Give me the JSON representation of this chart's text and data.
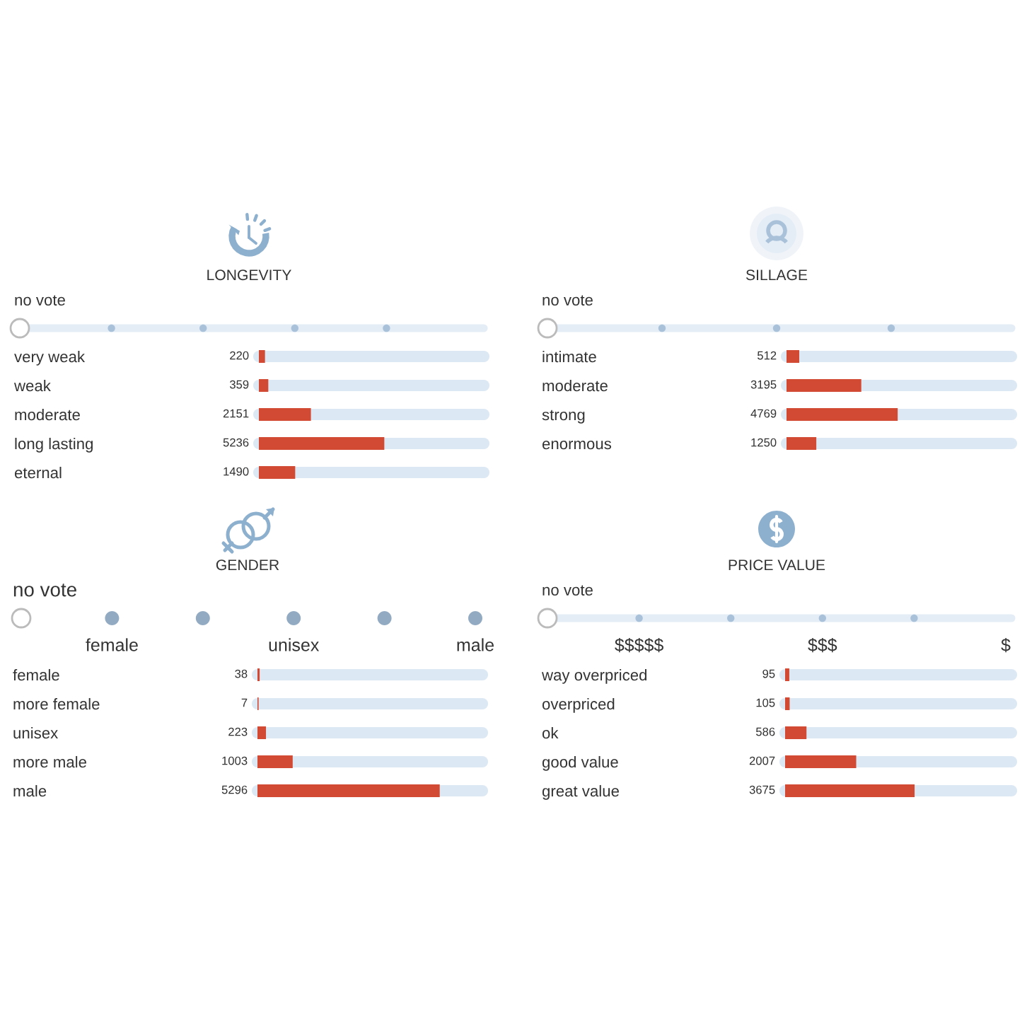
{
  "chart_data": [
    {
      "type": "bar",
      "orientation": "horizontal",
      "title": "LONGEVITY",
      "categories": [
        "very weak",
        "weak",
        "moderate",
        "long lasting",
        "eternal"
      ],
      "values": [
        220,
        359,
        2151,
        5236,
        1490
      ],
      "color": "#d24a33",
      "xlim": [
        0,
        9456
      ],
      "data_labels": true,
      "grid": "y",
      "tick_labels": "y",
      "annotations": [
        "no vote"
      ]
    },
    {
      "type": "bar",
      "orientation": "horizontal",
      "title": "SILLAGE",
      "categories": [
        "intimate",
        "moderate",
        "strong",
        "enormous"
      ],
      "values": [
        512,
        3195,
        4769,
        1250
      ],
      "color": "#d24a33",
      "xlim": [
        0,
        9726
      ],
      "data_labels": true,
      "grid": "y",
      "tick_labels": "y",
      "annotations": [
        "no vote"
      ]
    },
    {
      "type": "bar",
      "orientation": "horizontal",
      "title": "GENDER",
      "categories": [
        "female",
        "more female",
        "unisex",
        "more male",
        "male"
      ],
      "values": [
        38,
        7,
        223,
        1003,
        5296
      ],
      "color": "#d24a33",
      "xlim": [
        0,
        6567
      ],
      "data_labels": true,
      "grid": "y",
      "tick_labels": "y",
      "annotations": [
        "no vote",
        "female",
        "unisex",
        "male"
      ]
    },
    {
      "type": "bar",
      "orientation": "horizontal",
      "title": "PRICE VALUE",
      "categories": [
        "way overpriced",
        "overpriced",
        "ok",
        "good value",
        "great value"
      ],
      "values": [
        95,
        105,
        586,
        2007,
        3675
      ],
      "color": "#d24a33",
      "xlim": [
        0,
        6468
      ],
      "data_labels": true,
      "grid": "y",
      "tick_labels": "y",
      "annotations": [
        "no vote",
        "$$$$$",
        "$$$",
        "$"
      ]
    }
  ]
}
